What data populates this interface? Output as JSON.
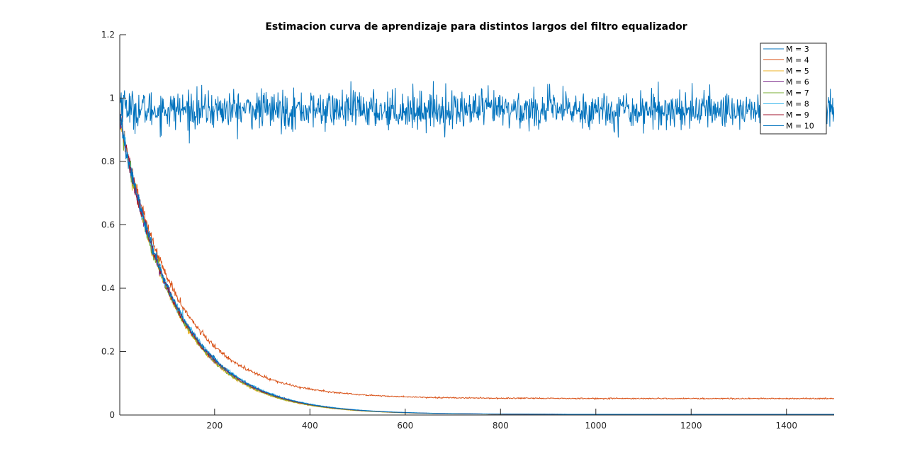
{
  "chart_data": {
    "type": "line",
    "title": "Estimacion curva de aprendizaje para distintos largos del filtro equalizador",
    "xlabel": "",
    "ylabel": "",
    "xlim": [
      1,
      1500
    ],
    "ylim": [
      0,
      1.2
    ],
    "xticks": [
      200,
      400,
      600,
      800,
      1000,
      1200,
      1400
    ],
    "yticks": [
      0,
      0.2,
      0.4,
      0.6,
      0.8,
      1,
      1.2
    ],
    "ytick_labels": [
      "0",
      "0.2",
      "0.4",
      "0.6",
      "0.8",
      "1",
      "1.2"
    ],
    "grid": false,
    "legend_position": "top-right",
    "series": [
      {
        "name": "M = 3",
        "color": "#0072BD",
        "model": {
          "kind": "noise",
          "mean": 0.963,
          "spread": 0.055,
          "start": 1.0
        }
      },
      {
        "name": "M = 4",
        "color": "#D95319",
        "model": {
          "kind": "decay",
          "start": 0.94,
          "floor": 0.052,
          "tau": 118,
          "noise": 0.05
        }
      },
      {
        "name": "M = 5",
        "color": "#EDB120",
        "model": {
          "kind": "decay",
          "start": 0.94,
          "floor": 0.002,
          "tau": 114,
          "noise": 0.05
        }
      },
      {
        "name": "M = 6",
        "color": "#7E2F8E",
        "model": {
          "kind": "decay",
          "start": 0.94,
          "floor": 0.002,
          "tau": 116,
          "noise": 0.05
        }
      },
      {
        "name": "M = 7",
        "color": "#77AC30",
        "model": {
          "kind": "decay",
          "start": 0.94,
          "floor": 0.002,
          "tau": 115,
          "noise": 0.05
        }
      },
      {
        "name": "M = 8",
        "color": "#4DBEEE",
        "model": {
          "kind": "decay",
          "start": 0.94,
          "floor": 0.002,
          "tau": 119,
          "noise": 0.05
        }
      },
      {
        "name": "M = 9",
        "color": "#A2142F",
        "model": {
          "kind": "decay",
          "start": 0.94,
          "floor": 0.002,
          "tau": 117,
          "noise": 0.05
        }
      },
      {
        "name": "M = 10",
        "color": "#0072BD",
        "model": {
          "kind": "decay",
          "start": 0.94,
          "floor": 0.002,
          "tau": 118,
          "noise": 0.05
        }
      }
    ]
  }
}
